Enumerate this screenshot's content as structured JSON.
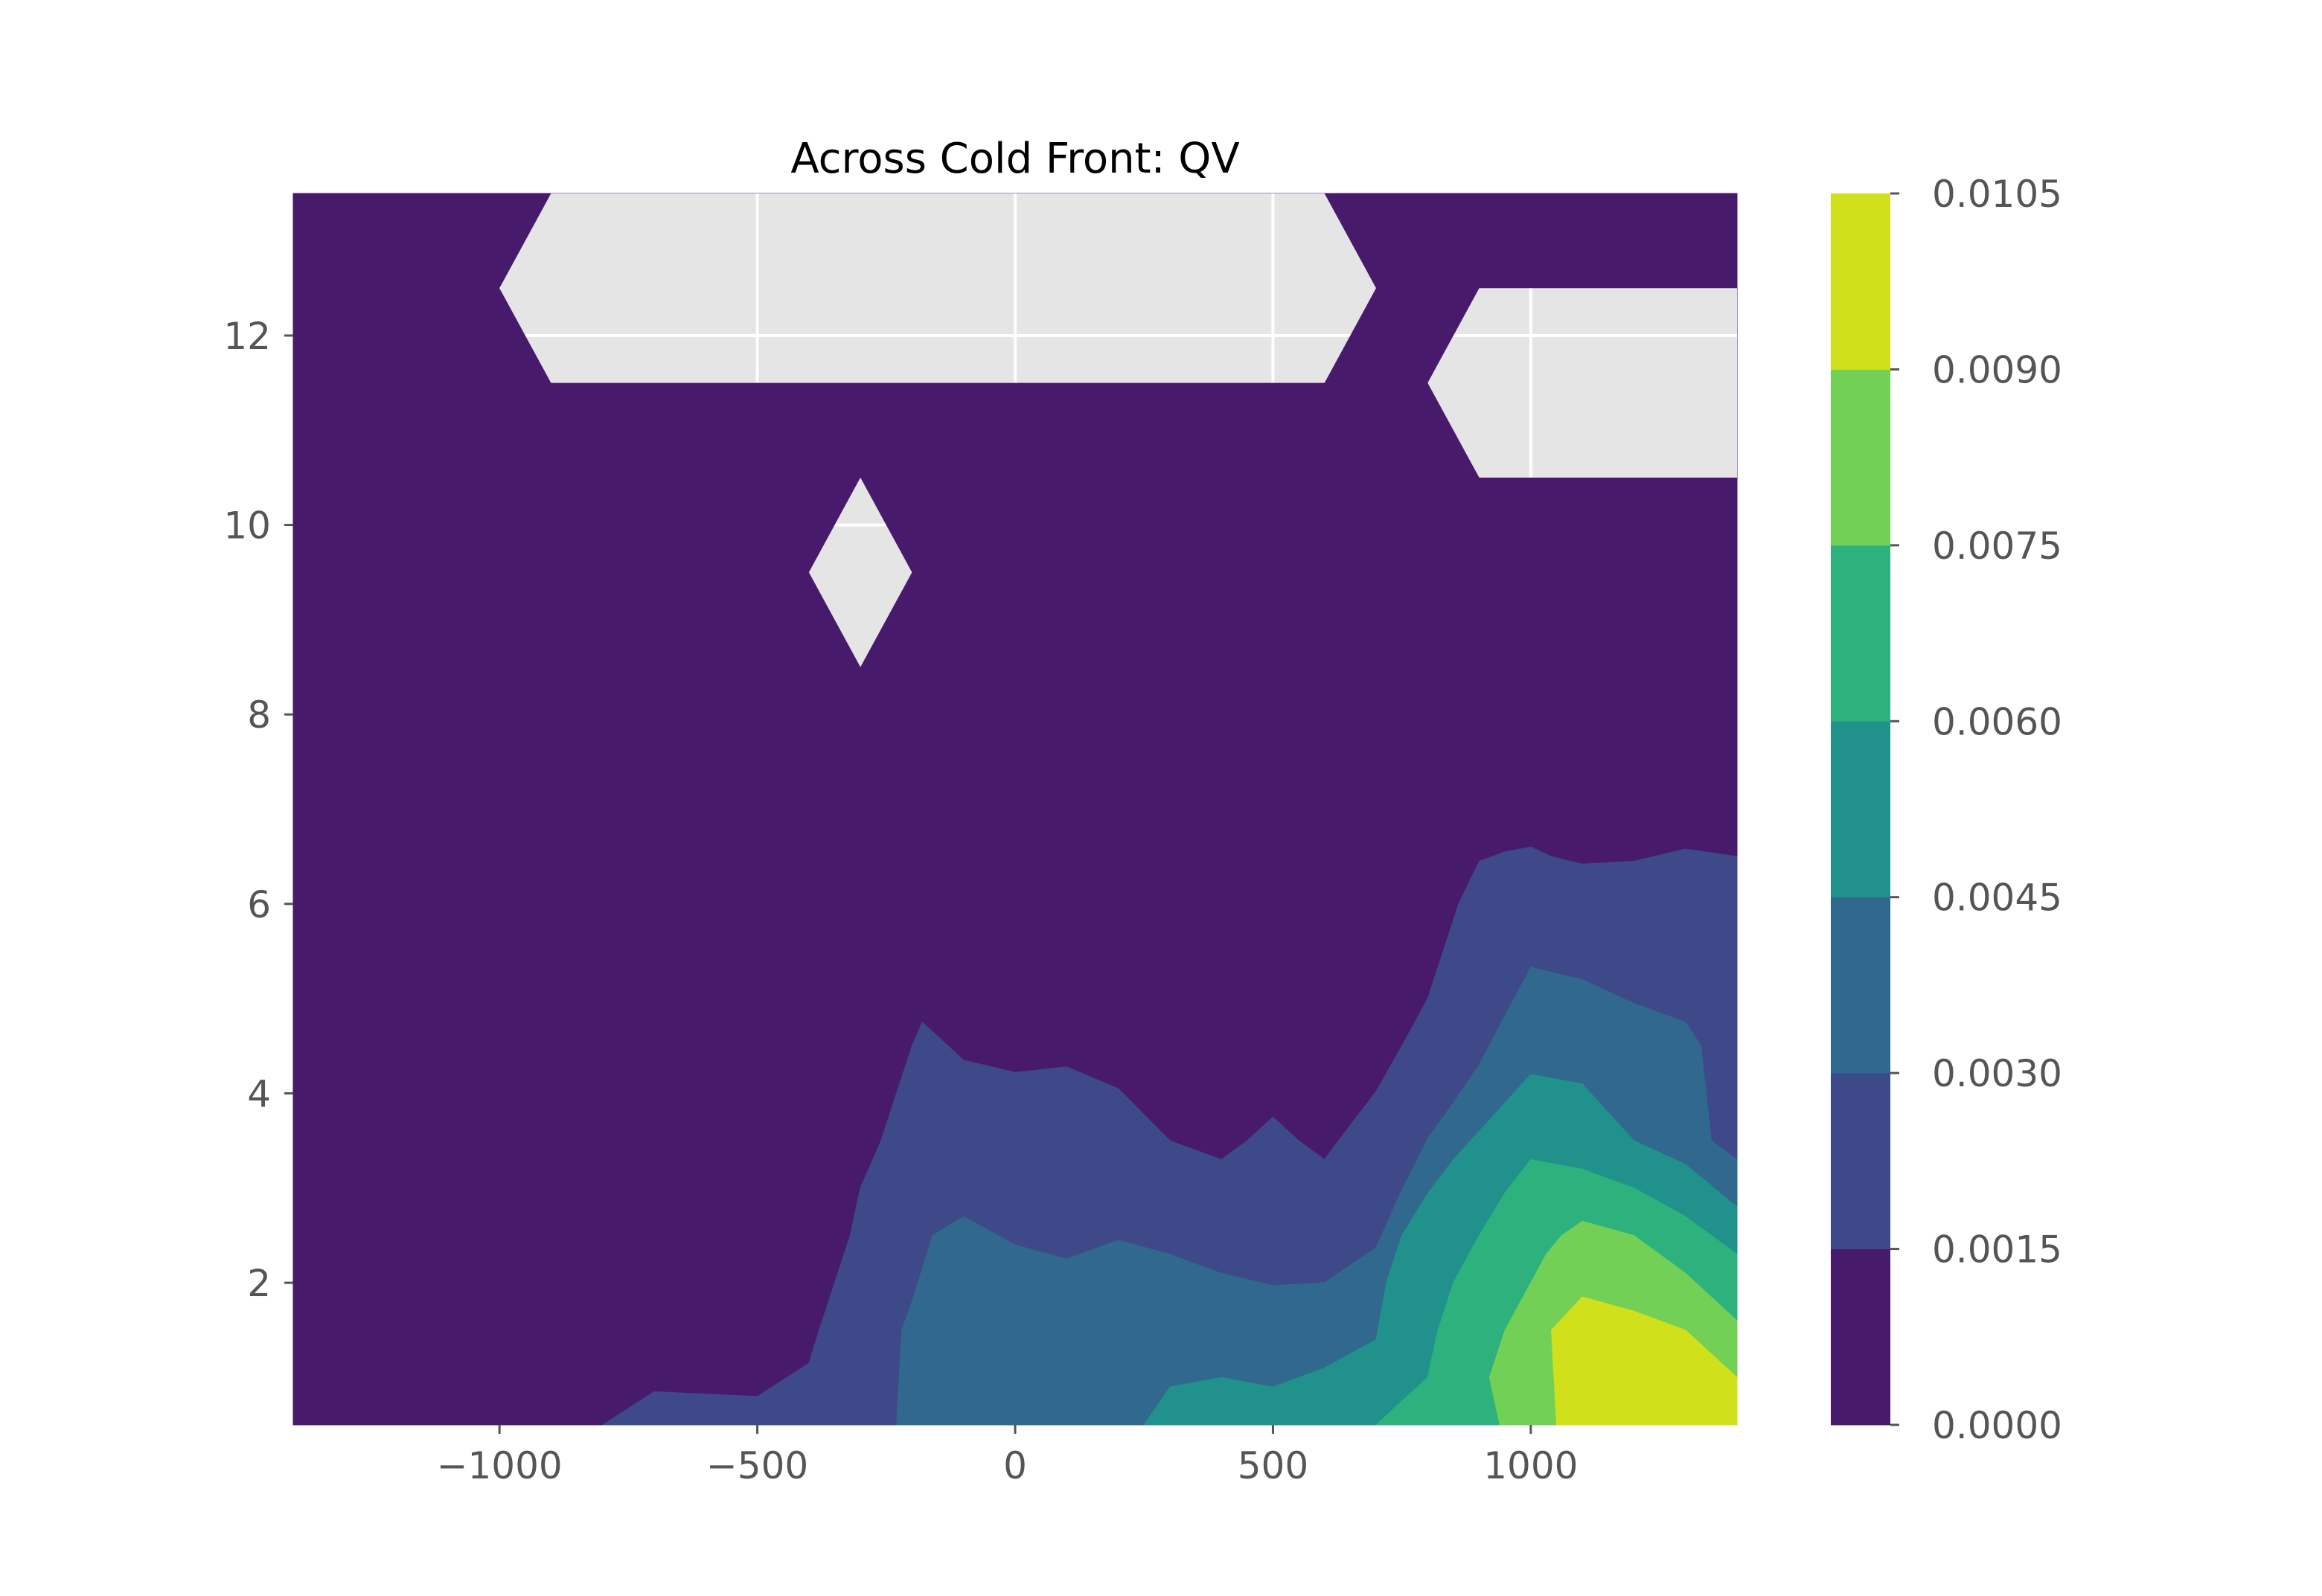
{
  "chart_data": {
    "type": "contourf",
    "title": "Across Cold Front: QV",
    "xlabel": "",
    "ylabel": "",
    "xlim": [
      -1400,
      1400
    ],
    "ylim": [
      0.5,
      13.5
    ],
    "xticks": [
      -1000,
      -500,
      0,
      500,
      1000
    ],
    "xtick_labels": [
      "−1000",
      "−500",
      "0",
      "500",
      "1000"
    ],
    "yticks": [
      2,
      4,
      6,
      8,
      10,
      12
    ],
    "ytick_labels": [
      "2",
      "4",
      "6",
      "8",
      "10",
      "12"
    ],
    "grid": true,
    "background": "#e5e5e5",
    "colormap": "viridis",
    "levels": [
      0.0,
      0.0015,
      0.003,
      0.0045,
      0.006,
      0.0075,
      0.009,
      0.0105
    ],
    "level_labels": [
      "0.0000",
      "0.0015",
      "0.0030",
      "0.0045",
      "0.0060",
      "0.0075",
      "0.0090",
      "0.0105"
    ],
    "level_colors": [
      "#481a6c",
      "#3e4989",
      "#31688e",
      "#21918c",
      "#2db27d",
      "#73d056",
      "#d0e11c"
    ],
    "regions": [
      {
        "band": 0,
        "points": [
          [
            -1400,
            0.5
          ],
          [
            1400,
            0.5
          ],
          [
            1400,
            13.5
          ],
          [
            -1400,
            13.5
          ]
        ]
      },
      {
        "band": 1,
        "points": [
          [
            -800,
            0.5
          ],
          [
            -700,
            0.85
          ],
          [
            -500,
            0.8
          ],
          [
            -400,
            1.15
          ],
          [
            -380,
            1.5
          ],
          [
            -320,
            2.5
          ],
          [
            -300,
            3
          ],
          [
            -260,
            3.5
          ],
          [
            -230,
            4
          ],
          [
            -200,
            4.5
          ],
          [
            -180,
            4.75
          ],
          [
            -150,
            4.6
          ],
          [
            -100,
            4.35
          ],
          [
            0,
            4.22
          ],
          [
            100,
            4.28
          ],
          [
            200,
            4.05
          ],
          [
            300,
            3.5
          ],
          [
            400,
            3.3
          ],
          [
            450,
            3.5
          ],
          [
            500,
            3.75
          ],
          [
            550,
            3.5
          ],
          [
            600,
            3.3
          ],
          [
            620,
            3.45
          ],
          [
            700,
            4.02
          ],
          [
            750,
            4.5
          ],
          [
            800,
            5
          ],
          [
            830,
            5.5
          ],
          [
            860,
            6
          ],
          [
            900,
            6.45
          ],
          [
            950,
            6.55
          ],
          [
            1000,
            6.6
          ],
          [
            1040,
            6.5
          ],
          [
            1100,
            6.42
          ],
          [
            1200,
            6.45
          ],
          [
            1300,
            6.58
          ],
          [
            1400,
            6.5
          ],
          [
            1400,
            0.5
          ]
        ]
      },
      {
        "band": 2,
        "points": [
          [
            -230,
            0.5
          ],
          [
            -220,
            1.5
          ],
          [
            -200,
            1.8
          ],
          [
            -160,
            2.5
          ],
          [
            -100,
            2.7
          ],
          [
            0,
            2.4
          ],
          [
            100,
            2.25
          ],
          [
            200,
            2.45
          ],
          [
            300,
            2.3
          ],
          [
            400,
            2.1
          ],
          [
            500,
            1.97
          ],
          [
            600,
            2.0
          ],
          [
            700,
            2.37
          ],
          [
            750,
            2.98
          ],
          [
            800,
            3.52
          ],
          [
            850,
            3.9
          ],
          [
            900,
            4.3
          ],
          [
            950,
            4.82
          ],
          [
            1000,
            5.33
          ],
          [
            1100,
            5.2
          ],
          [
            1200,
            4.95
          ],
          [
            1300,
            4.75
          ],
          [
            1330,
            4.5
          ],
          [
            1350,
            3.5
          ],
          [
            1400,
            3.3
          ],
          [
            1400,
            0.5
          ]
        ]
      },
      {
        "band": 3,
        "points": [
          [
            250,
            0.5
          ],
          [
            300,
            0.9
          ],
          [
            400,
            1.0
          ],
          [
            500,
            0.9
          ],
          [
            600,
            1.1
          ],
          [
            700,
            1.4
          ],
          [
            720,
            2.0
          ],
          [
            750,
            2.5
          ],
          [
            800,
            2.94
          ],
          [
            850,
            3.3
          ],
          [
            900,
            3.6
          ],
          [
            950,
            3.9
          ],
          [
            1000,
            4.2
          ],
          [
            1100,
            4.1
          ],
          [
            1200,
            3.5
          ],
          [
            1300,
            3.25
          ],
          [
            1400,
            2.8
          ],
          [
            1400,
            0.5
          ]
        ]
      },
      {
        "band": 4,
        "points": [
          [
            700,
            0.5
          ],
          [
            800,
            1.0
          ],
          [
            820,
            1.5
          ],
          [
            850,
            2.0
          ],
          [
            900,
            2.5
          ],
          [
            950,
            2.95
          ],
          [
            1000,
            3.3
          ],
          [
            1100,
            3.2
          ],
          [
            1200,
            3.0
          ],
          [
            1300,
            2.7
          ],
          [
            1400,
            2.3
          ],
          [
            1400,
            0.5
          ]
        ]
      },
      {
        "band": 5,
        "points": [
          [
            940,
            0.5
          ],
          [
            920,
            1.0
          ],
          [
            950,
            1.5
          ],
          [
            1000,
            2.0
          ],
          [
            1030,
            2.3
          ],
          [
            1060,
            2.5
          ],
          [
            1100,
            2.65
          ],
          [
            1200,
            2.5
          ],
          [
            1300,
            2.1
          ],
          [
            1400,
            1.6
          ],
          [
            1400,
            0.5
          ]
        ]
      },
      {
        "band": 6,
        "points": [
          [
            1050,
            0.5
          ],
          [
            1040,
            1.5
          ],
          [
            1100,
            1.85
          ],
          [
            1200,
            1.7
          ],
          [
            1300,
            1.5
          ],
          [
            1400,
            1.0
          ],
          [
            1400,
            0.5
          ]
        ]
      }
    ],
    "no_data_regions": [
      [
        [
          -900,
          13.5
        ],
        [
          600,
          13.5
        ],
        [
          700,
          12.5
        ],
        [
          600,
          11.5
        ],
        [
          -900,
          11.5
        ],
        [
          -1000,
          12.5
        ]
      ],
      [
        [
          1400,
          12.5
        ],
        [
          900,
          12.5
        ],
        [
          800,
          11.5
        ],
        [
          900,
          10.5
        ],
        [
          1400,
          10.5
        ]
      ],
      [
        [
          -300,
          10.5
        ],
        [
          -200,
          9.5
        ],
        [
          -300,
          8.5
        ],
        [
          -400,
          9.5
        ]
      ]
    ]
  }
}
